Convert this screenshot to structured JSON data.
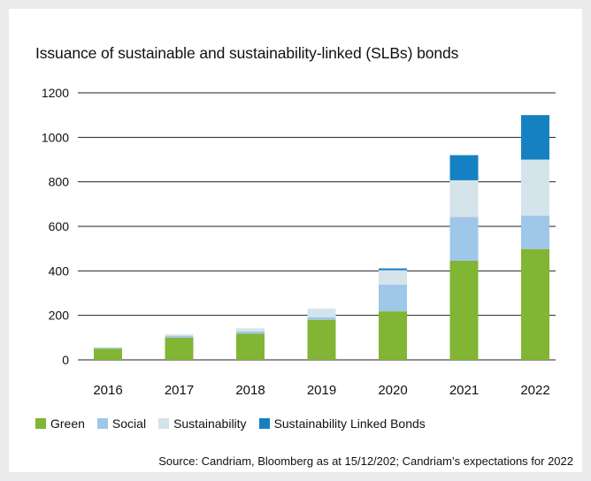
{
  "title": "Issuance of sustainable and sustainability-linked (SLBs) bonds",
  "source": "Source: Candriam, Bloomberg as at 15/12/202; Candriam’s expectations for 2022",
  "colors": {
    "green": "#82b533",
    "social": "#9ec7e8",
    "sustainability": "#d5e3eb",
    "slb": "#1681c2"
  },
  "chart_data": {
    "type": "bar",
    "stacked": true,
    "title": "Issuance of sustainable and sustainability-linked (SLBs) bonds",
    "categories": [
      "2016",
      "2017",
      "2018",
      "2019",
      "2020",
      "2021",
      "2022"
    ],
    "ylim": [
      0,
      1200
    ],
    "yticks": [
      "0",
      "200",
      "400",
      "600",
      "800",
      "1000",
      "1200"
    ],
    "grid": true,
    "legend_position": "bottom",
    "series": [
      {
        "name": "Green",
        "color": "#82b533",
        "values": [
          50,
          100,
          118,
          180,
          218,
          445,
          498
        ]
      },
      {
        "name": "Social",
        "color": "#9ec7e8",
        "values": [
          5,
          7,
          10,
          12,
          120,
          197,
          150
        ]
      },
      {
        "name": "Sustainability",
        "color": "#d5e3eb",
        "values": [
          0,
          8,
          14,
          38,
          65,
          165,
          252
        ]
      },
      {
        "name": "Sustainability Linked Bonds",
        "color": "#1681c2",
        "values": [
          0,
          0,
          0,
          0,
          8,
          113,
          200
        ]
      }
    ]
  }
}
